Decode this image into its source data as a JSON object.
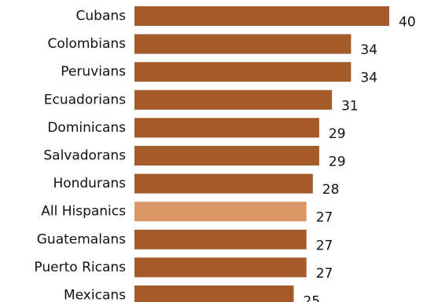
{
  "chart_data": {
    "type": "bar",
    "orientation": "horizontal",
    "categories": [
      "Cubans",
      "Colombians",
      "Peruvians",
      "Ecuadorians",
      "Dominicans",
      "Salvadorans",
      "Hondurans",
      "All Hispanics",
      "Guatemalans",
      "Puerto Ricans",
      "Mexicans"
    ],
    "values": [
      40,
      34,
      34,
      31,
      29,
      29,
      28,
      27,
      27,
      27,
      25
    ],
    "highlight_category": "All Hispanics",
    "colors": {
      "bar": "#A55A2A",
      "highlight": "#DC9868"
    },
    "title": "",
    "xlabel": "",
    "ylabel": "",
    "xlim": [
      0,
      40
    ],
    "grid": false,
    "legend": "none",
    "data_labels": true
  }
}
